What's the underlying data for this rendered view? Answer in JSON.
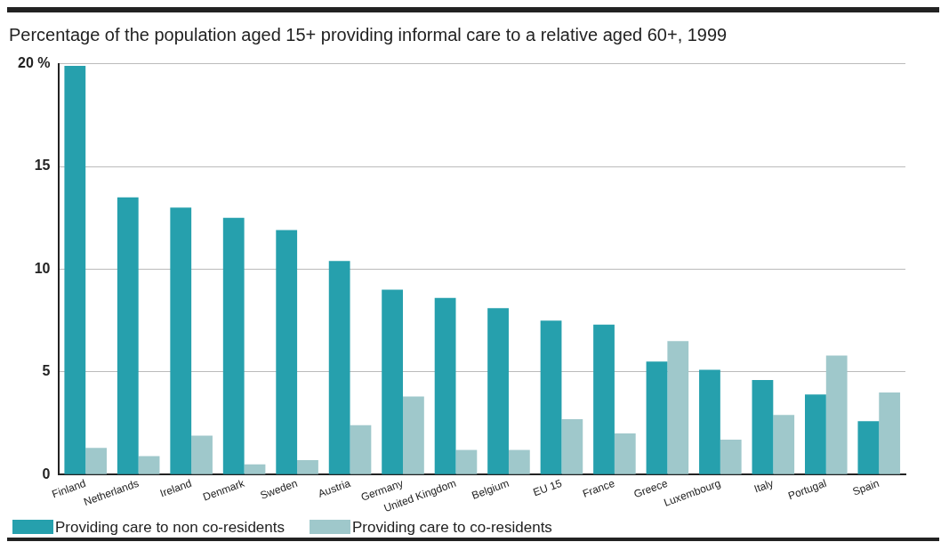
{
  "chart_data": {
    "type": "bar",
    "title": "Percentage of the population aged 15+ providing informal care to a relative aged 60+, 1999",
    "categories": [
      "Finland",
      "Netherlands",
      "Ireland",
      "Denmark",
      "Sweden",
      "Austria",
      "Germany",
      "United Kingdom",
      "Belgium",
      "EU 15",
      "France",
      "Greece",
      "Luxembourg",
      "Italy",
      "Portugal",
      "Spain"
    ],
    "series": [
      {
        "name": "Providing care to non co-residents",
        "color": "#26a0ad",
        "values": [
          19.9,
          13.5,
          13.0,
          12.5,
          11.9,
          10.4,
          9.0,
          8.6,
          8.1,
          7.5,
          7.3,
          5.5,
          5.1,
          4.6,
          3.9,
          2.6
        ]
      },
      {
        "name": "Providing care to co-residents",
        "color": "#9fc8cb",
        "values": [
          1.3,
          0.9,
          1.9,
          0.5,
          0.7,
          2.4,
          3.8,
          1.2,
          1.2,
          2.7,
          2.0,
          6.5,
          1.7,
          2.9,
          5.8,
          4.0
        ]
      }
    ],
    "ylim": [
      0,
      20
    ],
    "yticks": [
      0,
      5,
      10,
      15,
      {
        "value": 20,
        "label": "20 %"
      }
    ],
    "grid": "y",
    "legend": "bottom left"
  }
}
